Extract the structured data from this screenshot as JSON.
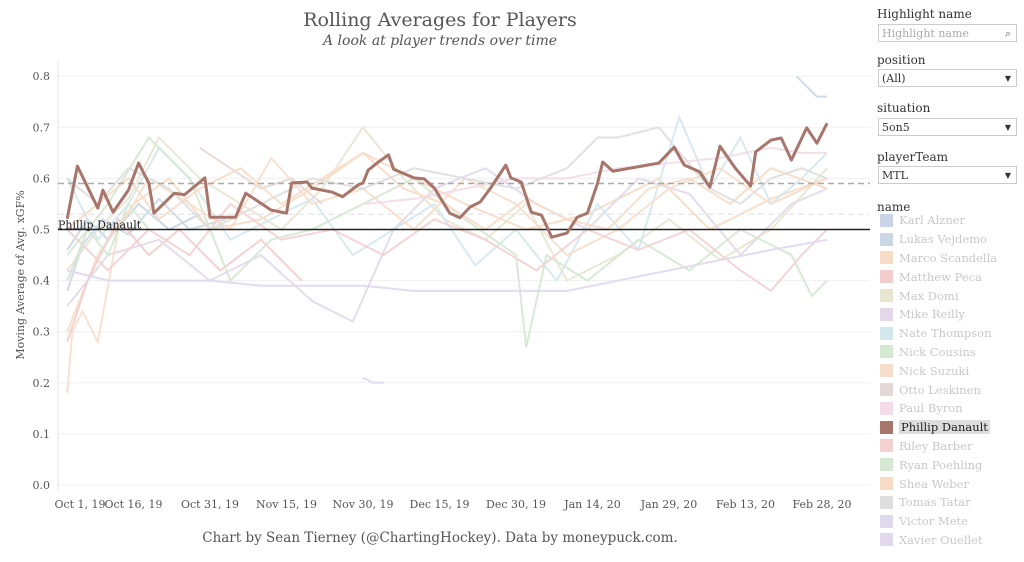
{
  "header": {
    "title": "Rolling Averages for Players",
    "subtitle": "A look at player trends over time"
  },
  "footer": "Chart by Sean Tierney (@ChartingHockey). Data by moneypuck.com.",
  "filters": {
    "highlight": {
      "label": "Highlight name",
      "placeholder": "Highlight name",
      "icon": "search-icon"
    },
    "position": {
      "label": "position",
      "value": "(All)"
    },
    "situation": {
      "label": "situation",
      "value": "5on5"
    },
    "playerTeam": {
      "label": "playerTeam",
      "value": "MTL"
    },
    "name_label": "name"
  },
  "legend": [
    {
      "name": "Karl Alzner",
      "color": "#c9d5e6"
    },
    {
      "name": "Lukas Vejdemo",
      "color": "#cbd7e6"
    },
    {
      "name": "Marco Scandella",
      "color": "#f6dcc4"
    },
    {
      "name": "Matthew Peca",
      "color": "#f3cccc"
    },
    {
      "name": "Max Domi",
      "color": "#e8e6cf"
    },
    {
      "name": "Mike Reilly",
      "color": "#e2d8ea"
    },
    {
      "name": "Nate Thompson",
      "color": "#d3e8ee"
    },
    {
      "name": "Nick Cousins",
      "color": "#d4e8d2"
    },
    {
      "name": "Nick Suzuki",
      "color": "#f7decb"
    },
    {
      "name": "Otto Leskinen",
      "color": "#e4d8d6"
    },
    {
      "name": "Paul Byron",
      "color": "#f2dce8"
    },
    {
      "name": "Phillip Danault",
      "color": "#a8756a",
      "highlight": true
    },
    {
      "name": "Riley Barber",
      "color": "#f3d0d2"
    },
    {
      "name": "Ryan Poehling",
      "color": "#d4e8d2"
    },
    {
      "name": "Shea Weber",
      "color": "#f7dcc6"
    },
    {
      "name": "Tomas Tatar",
      "color": "#dedede"
    },
    {
      "name": "Victor Mete",
      "color": "#e0d8ec"
    },
    {
      "name": "Xavier Ouellet",
      "color": "#e2d8ec"
    }
  ],
  "chart_data": {
    "type": "line",
    "title": "Rolling Averages for Players",
    "xlabel": "",
    "ylabel": "Moving Average of Avg. xGF%",
    "x_unit": "days since Oct 1, 2019",
    "xlim": [
      0,
      160
    ],
    "ylim": [
      0,
      0.8
    ],
    "yticks": [
      "0.0",
      "0.1",
      "0.2",
      "0.3",
      "0.4",
      "0.5",
      "0.6",
      "0.7",
      "0.8"
    ],
    "xticks": [
      {
        "x": 0,
        "label": "Oct 1, 19"
      },
      {
        "x": 15,
        "label": "Oct 16, 19"
      },
      {
        "x": 30,
        "label": "Oct 31, 19"
      },
      {
        "x": 45,
        "label": "Nov 15, 19"
      },
      {
        "x": 60,
        "label": "Nov 30, 19"
      },
      {
        "x": 75,
        "label": "Dec 15, 19"
      },
      {
        "x": 90,
        "label": "Dec 30, 19"
      },
      {
        "x": 105,
        "label": "Jan 14, 20"
      },
      {
        "x": 120,
        "label": "Jan 29, 20"
      },
      {
        "x": 135,
        "label": "Feb 13, 20"
      },
      {
        "x": 150,
        "label": "Feb 28, 20"
      }
    ],
    "reference_lines": [
      {
        "value": 0.5,
        "label": "Phillip Danault",
        "style": "solid"
      },
      {
        "value": 0.59,
        "style": "dashed"
      },
      {
        "value": 0.53,
        "style": "dashed-light"
      }
    ],
    "highlight": "Phillip Danault",
    "series": [
      {
        "name": "Phillip Danault",
        "x": [
          2,
          4,
          8,
          9,
          11,
          14,
          16,
          18,
          19,
          23,
          25,
          29,
          30,
          35,
          37,
          42,
          45,
          46,
          49,
          50,
          54,
          56,
          59,
          60,
          61,
          63,
          65,
          66,
          70,
          72,
          74,
          77,
          79,
          81,
          83,
          85,
          88,
          89,
          91,
          93,
          95,
          97,
          100,
          102,
          104,
          106,
          107,
          109,
          118,
          121,
          123,
          126,
          128,
          130,
          133,
          136,
          137,
          140,
          142,
          144,
          147,
          149,
          151
        ],
        "y": [
          0.521,
          0.624,
          0.542,
          0.577,
          0.534,
          0.577,
          0.63,
          0.591,
          0.532,
          0.571,
          0.568,
          0.601,
          0.524,
          0.524,
          0.571,
          0.538,
          0.532,
          0.591,
          0.593,
          0.581,
          0.573,
          0.564,
          0.587,
          0.591,
          0.616,
          0.632,
          0.646,
          0.618,
          0.601,
          0.599,
          0.581,
          0.532,
          0.523,
          0.544,
          0.554,
          0.581,
          0.626,
          0.601,
          0.593,
          0.534,
          0.528,
          0.485,
          0.493,
          0.524,
          0.532,
          0.591,
          0.632,
          0.614,
          0.63,
          0.661,
          0.626,
          0.613,
          0.583,
          0.663,
          0.62,
          0.585,
          0.652,
          0.675,
          0.679,
          0.636,
          0.699,
          0.669,
          0.708
        ]
      },
      {
        "name": "Karl Alzner",
        "x": [
          2,
          6,
          10,
          16,
          22,
          28
        ],
        "y": [
          0.46,
          0.52,
          0.48,
          0.55,
          0.5,
          0.53
        ]
      },
      {
        "name": "Lukas Vejdemo",
        "x": [
          2,
          5,
          9,
          14,
          20,
          26,
          33
        ],
        "y": [
          0.38,
          0.47,
          0.52,
          0.49,
          0.56,
          0.5,
          0.52
        ]
      },
      {
        "name": "Marco Scandella",
        "x": [
          2,
          8,
          15,
          22,
          30,
          40,
          50,
          60,
          70,
          80,
          92,
          104,
          118,
          128,
          140,
          151
        ],
        "y": [
          0.3,
          0.45,
          0.55,
          0.6,
          0.5,
          0.52,
          0.58,
          0.65,
          0.6,
          0.55,
          0.5,
          0.53,
          0.6,
          0.5,
          0.56,
          0.6
        ]
      },
      {
        "name": "Matthew Peca",
        "x": [
          2,
          6,
          12,
          18,
          24,
          32,
          40,
          48
        ],
        "y": [
          0.28,
          0.4,
          0.52,
          0.45,
          0.5,
          0.42,
          0.48,
          0.4
        ]
      },
      {
        "name": "Max Domi",
        "x": [
          2,
          8,
          14,
          20,
          28,
          36,
          44,
          52,
          60,
          68,
          76,
          84,
          92,
          100,
          110,
          120,
          130,
          140,
          151
        ],
        "y": [
          0.42,
          0.5,
          0.56,
          0.68,
          0.6,
          0.55,
          0.5,
          0.58,
          0.7,
          0.6,
          0.52,
          0.48,
          0.55,
          0.4,
          0.45,
          0.52,
          0.44,
          0.5,
          0.62
        ]
      },
      {
        "name": "Mike Reilly",
        "x": [
          2,
          10,
          20,
          30,
          40,
          50,
          58,
          66,
          74,
          84,
          94,
          104,
          114,
          124,
          134,
          144,
          151
        ],
        "y": [
          0.35,
          0.45,
          0.48,
          0.4,
          0.45,
          0.36,
          0.32,
          0.5,
          0.58,
          0.62,
          0.55,
          0.5,
          0.6,
          0.57,
          0.45,
          0.55,
          0.58
        ]
      },
      {
        "name": "Nate Thompson",
        "x": [
          2,
          8,
          14,
          20,
          26,
          34,
          42,
          50,
          58,
          66,
          74,
          82,
          90,
          98,
          106,
          114,
          122,
          128,
          134,
          140,
          146,
          151
        ],
        "y": [
          0.6,
          0.48,
          0.55,
          0.66,
          0.6,
          0.48,
          0.52,
          0.56,
          0.45,
          0.5,
          0.55,
          0.43,
          0.5,
          0.4,
          0.55,
          0.46,
          0.72,
          0.58,
          0.68,
          0.55,
          0.6,
          0.65
        ]
      },
      {
        "name": "Nick Cousins",
        "x": [
          2,
          10,
          18,
          26,
          34,
          42,
          50,
          60,
          70,
          80,
          90,
          92,
          96,
          104,
          114,
          124,
          134,
          144,
          148,
          151
        ],
        "y": [
          0.45,
          0.55,
          0.68,
          0.6,
          0.4,
          0.48,
          0.5,
          0.55,
          0.6,
          0.52,
          0.45,
          0.27,
          0.45,
          0.4,
          0.48,
          0.42,
          0.5,
          0.45,
          0.37,
          0.4
        ]
      },
      {
        "name": "Nick Suzuki",
        "x": [
          2,
          3,
          5,
          8,
          12,
          18,
          26,
          34,
          42,
          50,
          60,
          70,
          80,
          90,
          100,
          110,
          120,
          130,
          140,
          151
        ],
        "y": [
          0.18,
          0.3,
          0.34,
          0.28,
          0.5,
          0.6,
          0.55,
          0.5,
          0.64,
          0.55,
          0.58,
          0.5,
          0.6,
          0.55,
          0.45,
          0.5,
          0.58,
          0.62,
          0.55,
          0.6
        ]
      },
      {
        "name": "Otto Leskinen",
        "x": [
          28,
          34,
          40,
          46,
          52
        ],
        "y": [
          0.66,
          0.62,
          0.58,
          0.6,
          0.55
        ]
      },
      {
        "name": "Paul Byron",
        "x": [
          60,
          70,
          80,
          90,
          100,
          110,
          120,
          130,
          140,
          146,
          151
        ],
        "y": [
          0.55,
          0.56,
          0.58,
          0.6,
          0.6,
          0.62,
          0.63,
          0.64,
          0.66,
          0.65,
          0.65
        ]
      },
      {
        "name": "Riley Barber",
        "x": [
          2,
          10,
          18,
          26,
          34,
          44,
          54,
          64,
          74,
          84,
          94,
          104,
          114,
          124,
          134,
          140,
          146,
          151
        ],
        "y": [
          0.5,
          0.42,
          0.5,
          0.45,
          0.55,
          0.48,
          0.5,
          0.45,
          0.52,
          0.48,
          0.42,
          0.5,
          0.46,
          0.5,
          0.42,
          0.38,
          0.45,
          0.5
        ]
      },
      {
        "name": "Ryan Poehling",
        "x": [
          2,
          6,
          10,
          14,
          18
        ],
        "y": [
          0.4,
          0.5,
          0.45,
          0.55,
          0.5
        ]
      },
      {
        "name": "Shea Weber",
        "x": [
          2,
          8,
          14,
          20,
          28,
          36,
          44,
          52,
          60,
          68,
          76,
          84,
          92,
          100,
          108,
          116,
          124,
          132,
          140,
          151
        ],
        "y": [
          0.5,
          0.55,
          0.6,
          0.52,
          0.58,
          0.62,
          0.55,
          0.6,
          0.65,
          0.58,
          0.55,
          0.5,
          0.56,
          0.52,
          0.5,
          0.58,
          0.6,
          0.55,
          0.62,
          0.58
        ]
      },
      {
        "name": "Tomas Tatar",
        "x": [
          2,
          8,
          14,
          22,
          30,
          40,
          50,
          60,
          70,
          80,
          90,
          100,
          106,
          110,
          118,
          123,
          128,
          134,
          140,
          146,
          151
        ],
        "y": [
          0.6,
          0.55,
          0.62,
          0.58,
          0.5,
          0.55,
          0.6,
          0.58,
          0.62,
          0.6,
          0.58,
          0.62,
          0.68,
          0.68,
          0.7,
          0.64,
          0.58,
          0.55,
          0.6,
          0.62,
          0.6
        ]
      },
      {
        "name": "Victor Mete",
        "x": [
          2,
          10,
          20,
          30,
          40,
          50,
          60,
          70,
          80,
          90,
          100,
          110,
          120,
          130,
          140,
          151
        ],
        "y": [
          0.42,
          0.4,
          0.4,
          0.4,
          0.39,
          0.39,
          0.39,
          0.38,
          0.38,
          0.38,
          0.38,
          0.4,
          0.42,
          0.44,
          0.46,
          0.48
        ]
      },
      {
        "name": "Xavier Ouellet",
        "x": [
          60,
          62,
          64
        ],
        "y": [
          0.21,
          0.2,
          0.2
        ]
      },
      {
        "name": "Lukas Vejdemo",
        "x": [
          145,
          147,
          149,
          151
        ],
        "y": [
          0.8,
          0.78,
          0.76,
          0.76
        ]
      }
    ]
  }
}
